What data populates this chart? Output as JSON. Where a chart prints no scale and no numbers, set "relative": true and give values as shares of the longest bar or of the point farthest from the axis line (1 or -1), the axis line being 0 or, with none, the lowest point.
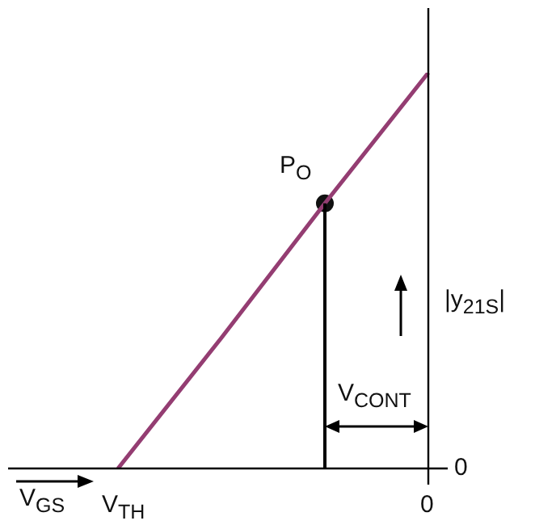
{
  "chart_data": {
    "type": "line",
    "relative": true,
    "categories": [
      null,
      "V$_{TH}$",
      null,
      null,
      "0"
    ],
    "series": [
      {
        "color": "#943d72",
        "values": [
          null,
          0,
          0.33,
          0.67,
          1
        ]
      },
      {
        "type": "scatter",
        "color": "#111111",
        "marker": "circle",
        "values": [
          null,
          null,
          null,
          0.67,
          null
        ]
      }
    ],
    "annotations": [
      "V$_{GS}$",
      "P$_{O}$",
      "V$_{CONT}$",
      "|y$_{21S}$|",
      "0"
    ],
    "legend": false
  }
}
